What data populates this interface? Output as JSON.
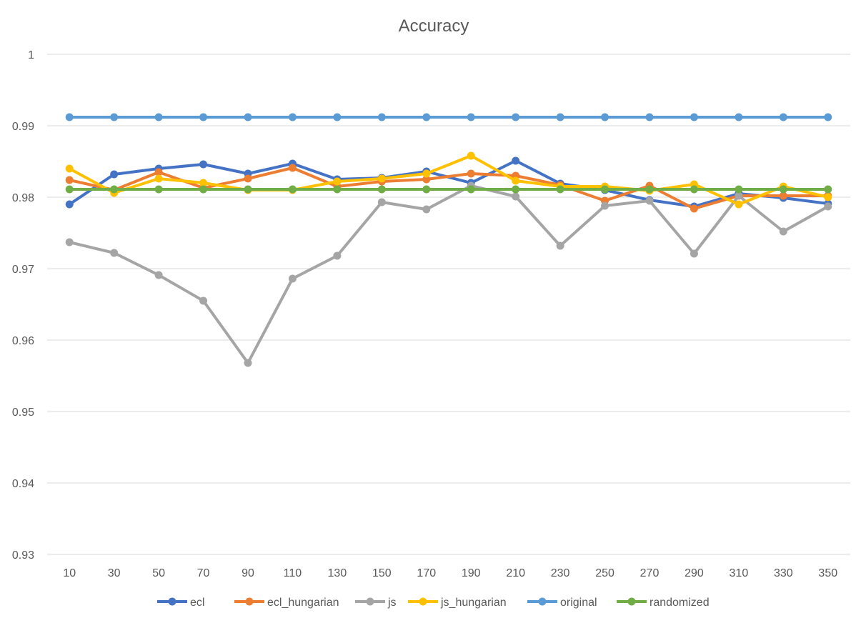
{
  "chart_data": {
    "type": "line",
    "title": "Accuracy",
    "xlabel": "",
    "ylabel": "",
    "x": [
      "10",
      "30",
      "50",
      "70",
      "90",
      "110",
      "130",
      "150",
      "170",
      "190",
      "210",
      "230",
      "250",
      "270",
      "290",
      "310",
      "330",
      "350"
    ],
    "ylim": [
      0.93,
      1
    ],
    "y_ticks": [
      "0.93",
      "0.94",
      "0.95",
      "0.96",
      "0.97",
      "0.98",
      "0.99",
      "1"
    ],
    "grid": true,
    "legend_position": "bottom",
    "series": [
      {
        "name": "ecl",
        "color": "#4472c4",
        "values": [
          0.979,
          0.9832,
          0.984,
          0.9846,
          0.9833,
          0.9847,
          0.9825,
          0.9827,
          0.9836,
          0.982,
          0.9851,
          0.9819,
          0.981,
          0.9796,
          0.9787,
          0.9805,
          0.9799,
          0.9791
        ]
      },
      {
        "name": "ecl_hungarian",
        "color": "#ed7d31",
        "values": [
          0.9824,
          0.981,
          0.9835,
          0.9813,
          0.9826,
          0.9841,
          0.9815,
          0.9822,
          0.9825,
          0.9833,
          0.983,
          0.9817,
          0.9795,
          0.9816,
          0.9784,
          0.9802,
          0.9802,
          0.9802
        ]
      },
      {
        "name": "js",
        "color": "#a5a5a5",
        "values": [
          0.9737,
          0.9722,
          0.9691,
          0.9655,
          0.9568,
          0.9686,
          0.9718,
          0.9793,
          0.9783,
          0.9816,
          0.9801,
          0.9732,
          0.9788,
          0.9795,
          0.9721,
          0.9802,
          0.9752,
          0.9787
        ]
      },
      {
        "name": "js_hungarian",
        "color": "#ffc000",
        "values": [
          0.984,
          0.9806,
          0.9826,
          0.982,
          0.981,
          0.981,
          0.9822,
          0.9826,
          0.9833,
          0.9858,
          0.9823,
          0.9815,
          0.9815,
          0.9809,
          0.9818,
          0.979,
          0.9815,
          0.98
        ]
      },
      {
        "name": "original",
        "color": "#5b9bd5",
        "values": [
          0.9912,
          0.9912,
          0.9912,
          0.9912,
          0.9912,
          0.9912,
          0.9912,
          0.9912,
          0.9912,
          0.9912,
          0.9912,
          0.9912,
          0.9912,
          0.9912,
          0.9912,
          0.9912,
          0.9912,
          0.9912
        ]
      },
      {
        "name": "randomized",
        "color": "#70ad47",
        "values": [
          0.9811,
          0.9811,
          0.9811,
          0.9811,
          0.9811,
          0.9811,
          0.9811,
          0.9811,
          0.9811,
          0.9811,
          0.9811,
          0.9811,
          0.9811,
          0.9811,
          0.9811,
          0.9811,
          0.9811,
          0.9811
        ]
      }
    ]
  }
}
